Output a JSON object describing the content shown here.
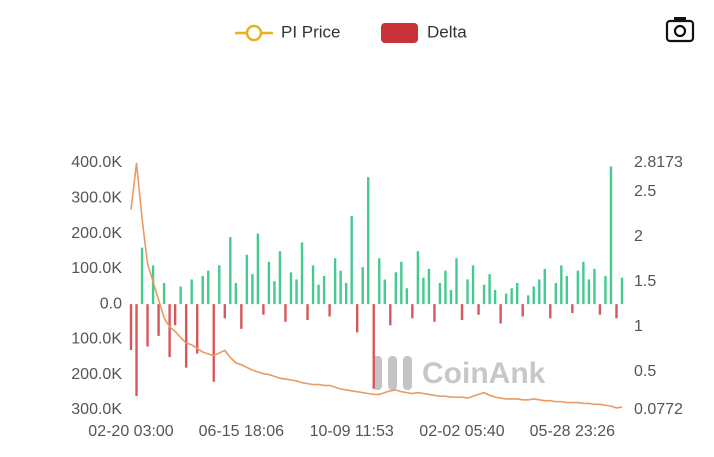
{
  "chart_data": {
    "type": "bar-line",
    "categories": [
      "02-20 03:00",
      null,
      null,
      null,
      null,
      null,
      null,
      null,
      null,
      null,
      null,
      null,
      null,
      null,
      null,
      null,
      null,
      null,
      null,
      null,
      "06-15 18:06",
      null,
      null,
      null,
      null,
      null,
      null,
      null,
      null,
      null,
      null,
      null,
      null,
      null,
      null,
      null,
      null,
      null,
      null,
      null,
      "10-09 11:53",
      null,
      null,
      null,
      null,
      null,
      null,
      null,
      null,
      null,
      null,
      null,
      null,
      null,
      null,
      null,
      null,
      null,
      null,
      null,
      "02-02 05:40",
      null,
      null,
      null,
      null,
      null,
      null,
      null,
      null,
      null,
      null,
      null,
      null,
      null,
      null,
      null,
      null,
      null,
      null,
      null,
      "05-28 23:26",
      null,
      null,
      null,
      null,
      null,
      null,
      null,
      null,
      null
    ],
    "series": [
      {
        "name": "PI Price",
        "type": "line",
        "axis": "y2",
        "color": "#ea9a63",
        "legend_color": "#e8b21e",
        "values": [
          2.3,
          2.8173,
          2.2,
          1.7,
          1.5,
          1.3,
          1.1,
          1.0,
          0.95,
          0.88,
          0.82,
          0.8,
          0.76,
          0.72,
          0.7,
          0.68,
          0.71,
          0.74,
          0.66,
          0.6,
          0.58,
          0.55,
          0.52,
          0.5,
          0.48,
          0.47,
          0.45,
          0.43,
          0.42,
          0.41,
          0.4,
          0.38,
          0.37,
          0.36,
          0.36,
          0.35,
          0.35,
          0.33,
          0.31,
          0.3,
          0.29,
          0.28,
          0.27,
          0.26,
          0.25,
          0.25,
          0.27,
          0.29,
          0.3,
          0.28,
          0.27,
          0.26,
          0.27,
          0.26,
          0.25,
          0.24,
          0.23,
          0.23,
          0.22,
          0.22,
          0.22,
          0.21,
          0.23,
          0.25,
          0.27,
          0.24,
          0.22,
          0.21,
          0.2,
          0.2,
          0.2,
          0.19,
          0.19,
          0.2,
          0.19,
          0.18,
          0.18,
          0.17,
          0.17,
          0.16,
          0.16,
          0.16,
          0.15,
          0.15,
          0.14,
          0.14,
          0.13,
          0.12,
          0.1,
          0.11
        ]
      },
      {
        "name": "Delta",
        "type": "bar",
        "axis": "y",
        "color": "#c8333a",
        "positive_color": "#45c98f",
        "negative_color": "#d8575d",
        "values": [
          -130000,
          -260000,
          160000,
          -120000,
          110000,
          -90000,
          60000,
          -150000,
          -60000,
          50000,
          -180000,
          70000,
          -140000,
          80000,
          95000,
          -220000,
          110000,
          -40000,
          190000,
          60000,
          -70000,
          140000,
          85000,
          200000,
          -30000,
          120000,
          65000,
          150000,
          -50000,
          90000,
          70000,
          175000,
          -45000,
          110000,
          55000,
          80000,
          -35000,
          130000,
          95000,
          60000,
          250000,
          -80000,
          105000,
          360000,
          -240000,
          130000,
          70000,
          -60000,
          90000,
          120000,
          45000,
          -40000,
          150000,
          75000,
          100000,
          -50000,
          60000,
          95000,
          40000,
          130000,
          -45000,
          70000,
          110000,
          -30000,
          55000,
          85000,
          40000,
          -55000,
          30000,
          45000,
          60000,
          -35000,
          25000,
          50000,
          70000,
          100000,
          -40000,
          60000,
          110000,
          80000,
          -25000,
          95000,
          120000,
          70000,
          100000,
          -30000,
          80000,
          390000,
          -40000,
          75000
        ]
      }
    ],
    "ylim": [
      -300000,
      400000
    ],
    "yticks": [
      {
        "value": 400000,
        "label": "400.0K"
      },
      {
        "value": 300000,
        "label": "300.0K"
      },
      {
        "value": 200000,
        "label": "200.0K"
      },
      {
        "value": 100000,
        "label": "100.0K"
      },
      {
        "value": 0,
        "label": "0.0"
      },
      {
        "value": -100000,
        "label": "100.0K"
      },
      {
        "value": -200000,
        "label": "200.0K"
      },
      {
        "value": -300000,
        "label": "300.0K"
      }
    ],
    "y2lim": [
      0.0772,
      2.8173
    ],
    "y2ticks": [
      2.8173,
      2.5,
      2,
      1.5,
      1,
      0.5,
      0.0772
    ],
    "grid": false,
    "legend": "top",
    "watermark": "CoinAnk"
  }
}
